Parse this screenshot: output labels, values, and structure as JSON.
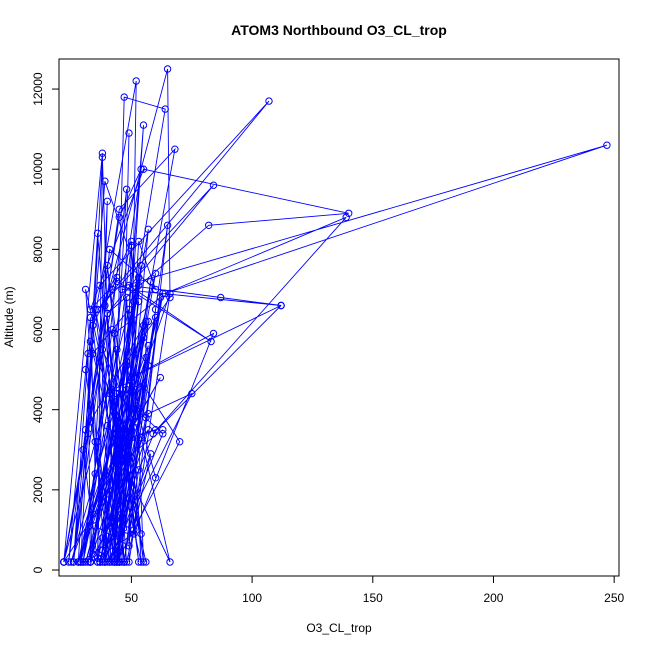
{
  "chart_data": {
    "type": "line",
    "title": "ATOM3 Northbound O3_CL_trop",
    "xlabel": "O3_CL_trop",
    "ylabel": "Altitude (m)",
    "xlim": [
      20,
      252
    ],
    "ylim": [
      -150,
      12750
    ],
    "xticks": [
      50,
      100,
      150,
      200,
      250
    ],
    "yticks": [
      0,
      2000,
      4000,
      6000,
      8000,
      10000,
      12000
    ],
    "grid": false,
    "legend": "none",
    "series_color": "#0000ff",
    "marker": "open-circle",
    "series": [
      {
        "x": [
          22,
          38,
          36,
          30,
          45,
          54,
          29,
          35,
          33,
          24,
          31,
          39,
          53,
          28,
          43,
          47,
          64,
          33,
          32,
          26,
          40,
          22,
          35,
          49,
          34,
          26,
          41,
          60,
          53,
          45,
          42,
          50,
          39,
          57,
          22,
          32,
          45,
          68,
          37
        ],
        "y": [
          200,
          10400,
          200,
          3000,
          8800,
          10000,
          200,
          2400,
          6300,
          200,
          3500,
          9700,
          7300,
          200,
          2600,
          11800,
          11500,
          200,
          5400,
          200,
          6400,
          200,
          3200,
          6500,
          5400,
          200,
          8000,
          7000,
          8200,
          200,
          4500,
          4700,
          200,
          3500,
          200,
          3400,
          9000,
          10500,
          200
        ]
      },
      {
        "x": [
          29,
          38,
          43,
          55,
          41,
          31,
          52,
          49,
          66,
          28,
          36,
          47,
          60,
          44,
          34,
          50,
          55,
          42,
          30,
          44,
          41,
          56,
          31,
          39,
          48,
          36,
          43,
          48,
          54,
          33,
          47,
          53,
          44,
          43,
          56,
          65,
          45,
          49
        ],
        "y": [
          200,
          10300,
          200,
          11100,
          200,
          5000,
          12200,
          200,
          6900,
          200,
          8400,
          200,
          6500,
          200,
          6100,
          8200,
          200,
          6000,
          200,
          5500,
          4400,
          200,
          7000,
          200,
          9500,
          3200,
          200,
          6800,
          200,
          5700,
          3500,
          200,
          4400,
          200,
          3800,
          8600,
          200,
          10900
        ]
      },
      {
        "x": [
          33,
          40,
          36,
          53,
          46,
          50,
          34,
          51,
          38,
          43,
          62,
          51,
          40,
          54,
          35,
          47,
          40,
          48,
          29,
          60,
          41,
          33,
          57,
          46,
          37,
          63,
          45,
          60,
          43,
          53,
          38,
          57,
          49,
          35,
          54,
          44,
          58,
          42
        ],
        "y": [
          200,
          9200,
          300,
          7100,
          200,
          8100,
          400,
          6700,
          500,
          5900,
          6800,
          1000,
          7600,
          900,
          6500,
          200,
          6400,
          1000,
          200,
          7400,
          1100,
          200,
          8500,
          1400,
          200,
          6900,
          200,
          6300,
          1200,
          6700,
          800,
          6200,
          600,
          1100,
          7600,
          300,
          7200,
          1300
        ]
      },
      {
        "x": [
          22,
          44,
          39,
          65,
          66,
          48,
          52,
          57,
          25,
          48,
          48,
          50,
          55,
          28,
          55,
          50,
          62,
          44,
          32,
          56,
          33,
          45,
          38,
          54,
          66,
          44,
          56,
          46,
          52,
          45,
          43,
          54,
          48,
          52,
          60
        ],
        "y": [
          200,
          7300,
          6600,
          12500,
          6800,
          5200,
          3700,
          5600,
          200,
          5100,
          4500,
          3300,
          6100,
          200,
          5800,
          3500,
          4800,
          2900,
          200,
          6200,
          3700,
          200,
          5500,
          3300,
          200,
          3000,
          5300,
          2600,
          4500,
          4400,
          1100,
          3900,
          2800,
          4100,
          2300
        ]
      },
      {
        "x": [
          30,
          34,
          44,
          31,
          40,
          47,
          36,
          45,
          46,
          45,
          38,
          48,
          43,
          47,
          53,
          40,
          39,
          50,
          44,
          42,
          58,
          48,
          43
        ],
        "y": [
          200,
          1400,
          3100,
          200,
          1900,
          3600,
          200,
          3000,
          3300,
          2100,
          200,
          2400,
          3900,
          200,
          2500,
          3600,
          200,
          2800,
          3700,
          200,
          2900,
          200,
          4200
        ]
      },
      {
        "x": [
          44,
          55,
          70,
          44,
          52,
          63,
          41,
          57,
          75,
          40,
          49,
          60,
          37,
          46,
          63
        ],
        "y": [
          200,
          4600,
          3200,
          200,
          4000,
          3400,
          200,
          3900,
          4400,
          200,
          3300,
          3500,
          200,
          2700,
          3500
        ]
      },
      {
        "x": [
          37,
          107,
          36,
          84,
          40,
          82,
          140,
          55,
          33,
          44,
          83,
          49,
          87,
          112,
          46
        ],
        "y": [
          7100,
          11700,
          6500,
          9600,
          6400,
          8600,
          8900,
          10000,
          6500,
          7200,
          5700,
          7100,
          6800,
          6600,
          7000
        ]
      },
      {
        "x": [
          42,
          247,
          64,
          139,
          59,
          112,
          50,
          84,
          51,
          33,
          57
        ],
        "y": [
          7000,
          10600,
          6900,
          8800,
          3400,
          6600,
          4800,
          5900,
          900,
          200,
          5100
        ]
      }
    ]
  }
}
